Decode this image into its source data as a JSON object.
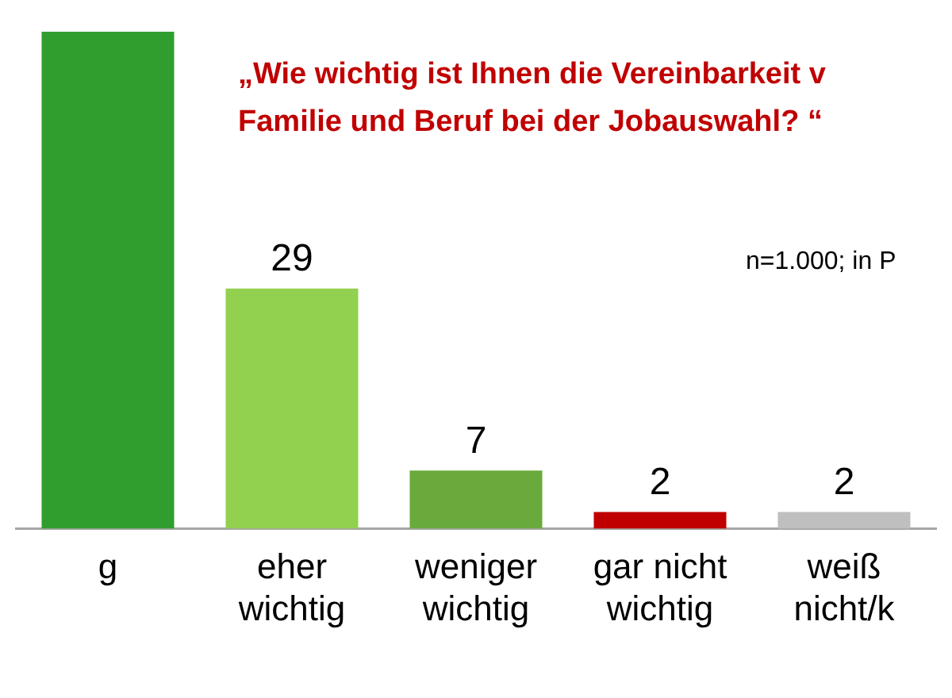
{
  "chart_data": {
    "type": "bar",
    "title": "„Wie wichtig ist Ihnen die Vereinbarkeit v Familie und Beruf bei der Jobauswahl? “",
    "categories": [
      "g",
      "eher wichtig",
      "weniger wichtig",
      "gar nicht wichtig",
      "weiß nicht/k"
    ],
    "values": [
      60,
      29,
      7,
      2,
      2
    ],
    "colors": [
      "#2f9e2f",
      "#92d050",
      "#6aaa3c",
      "#c00000",
      "#bfbfbf"
    ],
    "value_labels": [
      null,
      "29",
      "7",
      "2",
      "2"
    ],
    "annotations": [
      "n=1.000; in P"
    ],
    "tick_labels": "x"
  }
}
